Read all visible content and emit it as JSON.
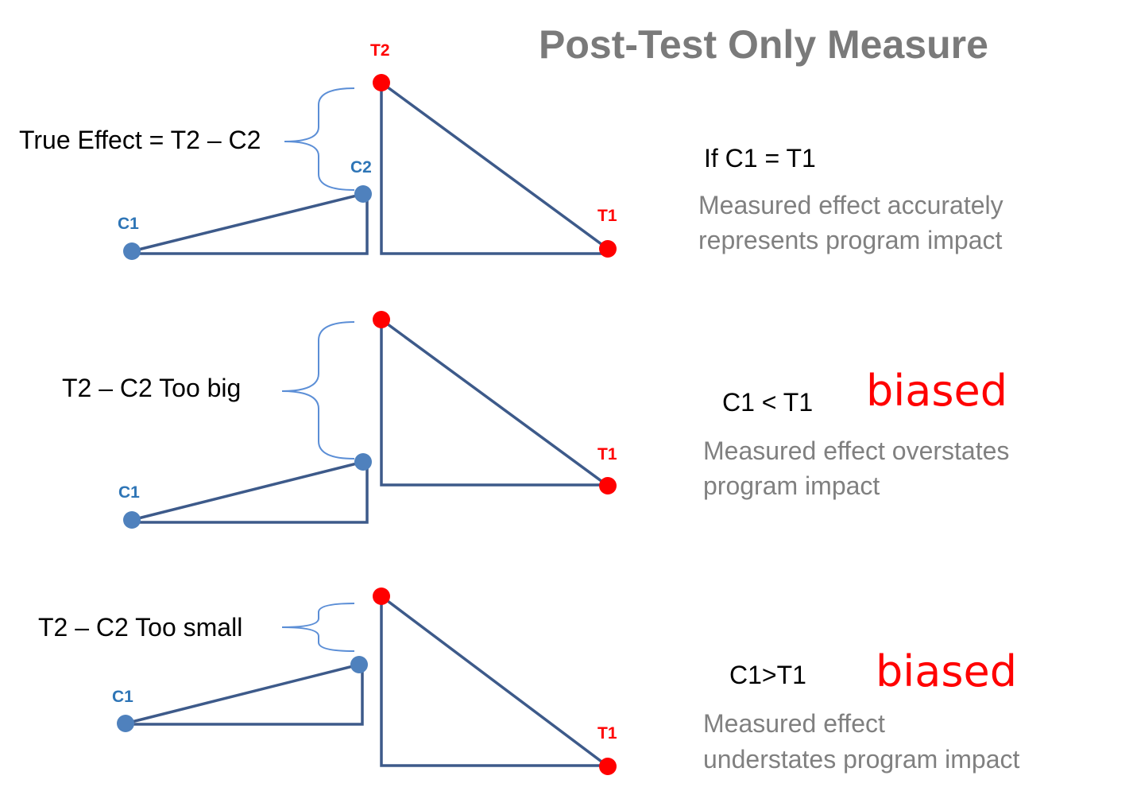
{
  "title": "Post-Test Only Measure",
  "colors": {
    "treatment": "#ff0000",
    "control": "#4f81bd",
    "line": "#3d5a8a",
    "biased": "#ff0000"
  },
  "panels": [
    {
      "labels": {
        "t2": "T2",
        "c2": "C2",
        "c1": "C1",
        "t1": "T1"
      },
      "brace_label": "True Effect = T2 – C2",
      "condition": "If C1 = T1",
      "biased": "",
      "description": [
        "Measured effect accurately",
        "represents program impact"
      ]
    },
    {
      "labels": {
        "t2": "",
        "c2": "",
        "c1": "C1",
        "t1": "T1"
      },
      "brace_label": "T2 – C2  Too big",
      "condition": "C1 < T1",
      "biased": "biased",
      "description": [
        "Measured effect overstates",
        "program impact"
      ]
    },
    {
      "labels": {
        "t2": "",
        "c2": "",
        "c1": "C1",
        "t1": "T1"
      },
      "brace_label": "T2 – C2   Too small",
      "condition": "C1>T1",
      "biased": "biased",
      "description": [
        "Measured effect",
        "understates program impact"
      ]
    }
  ]
}
